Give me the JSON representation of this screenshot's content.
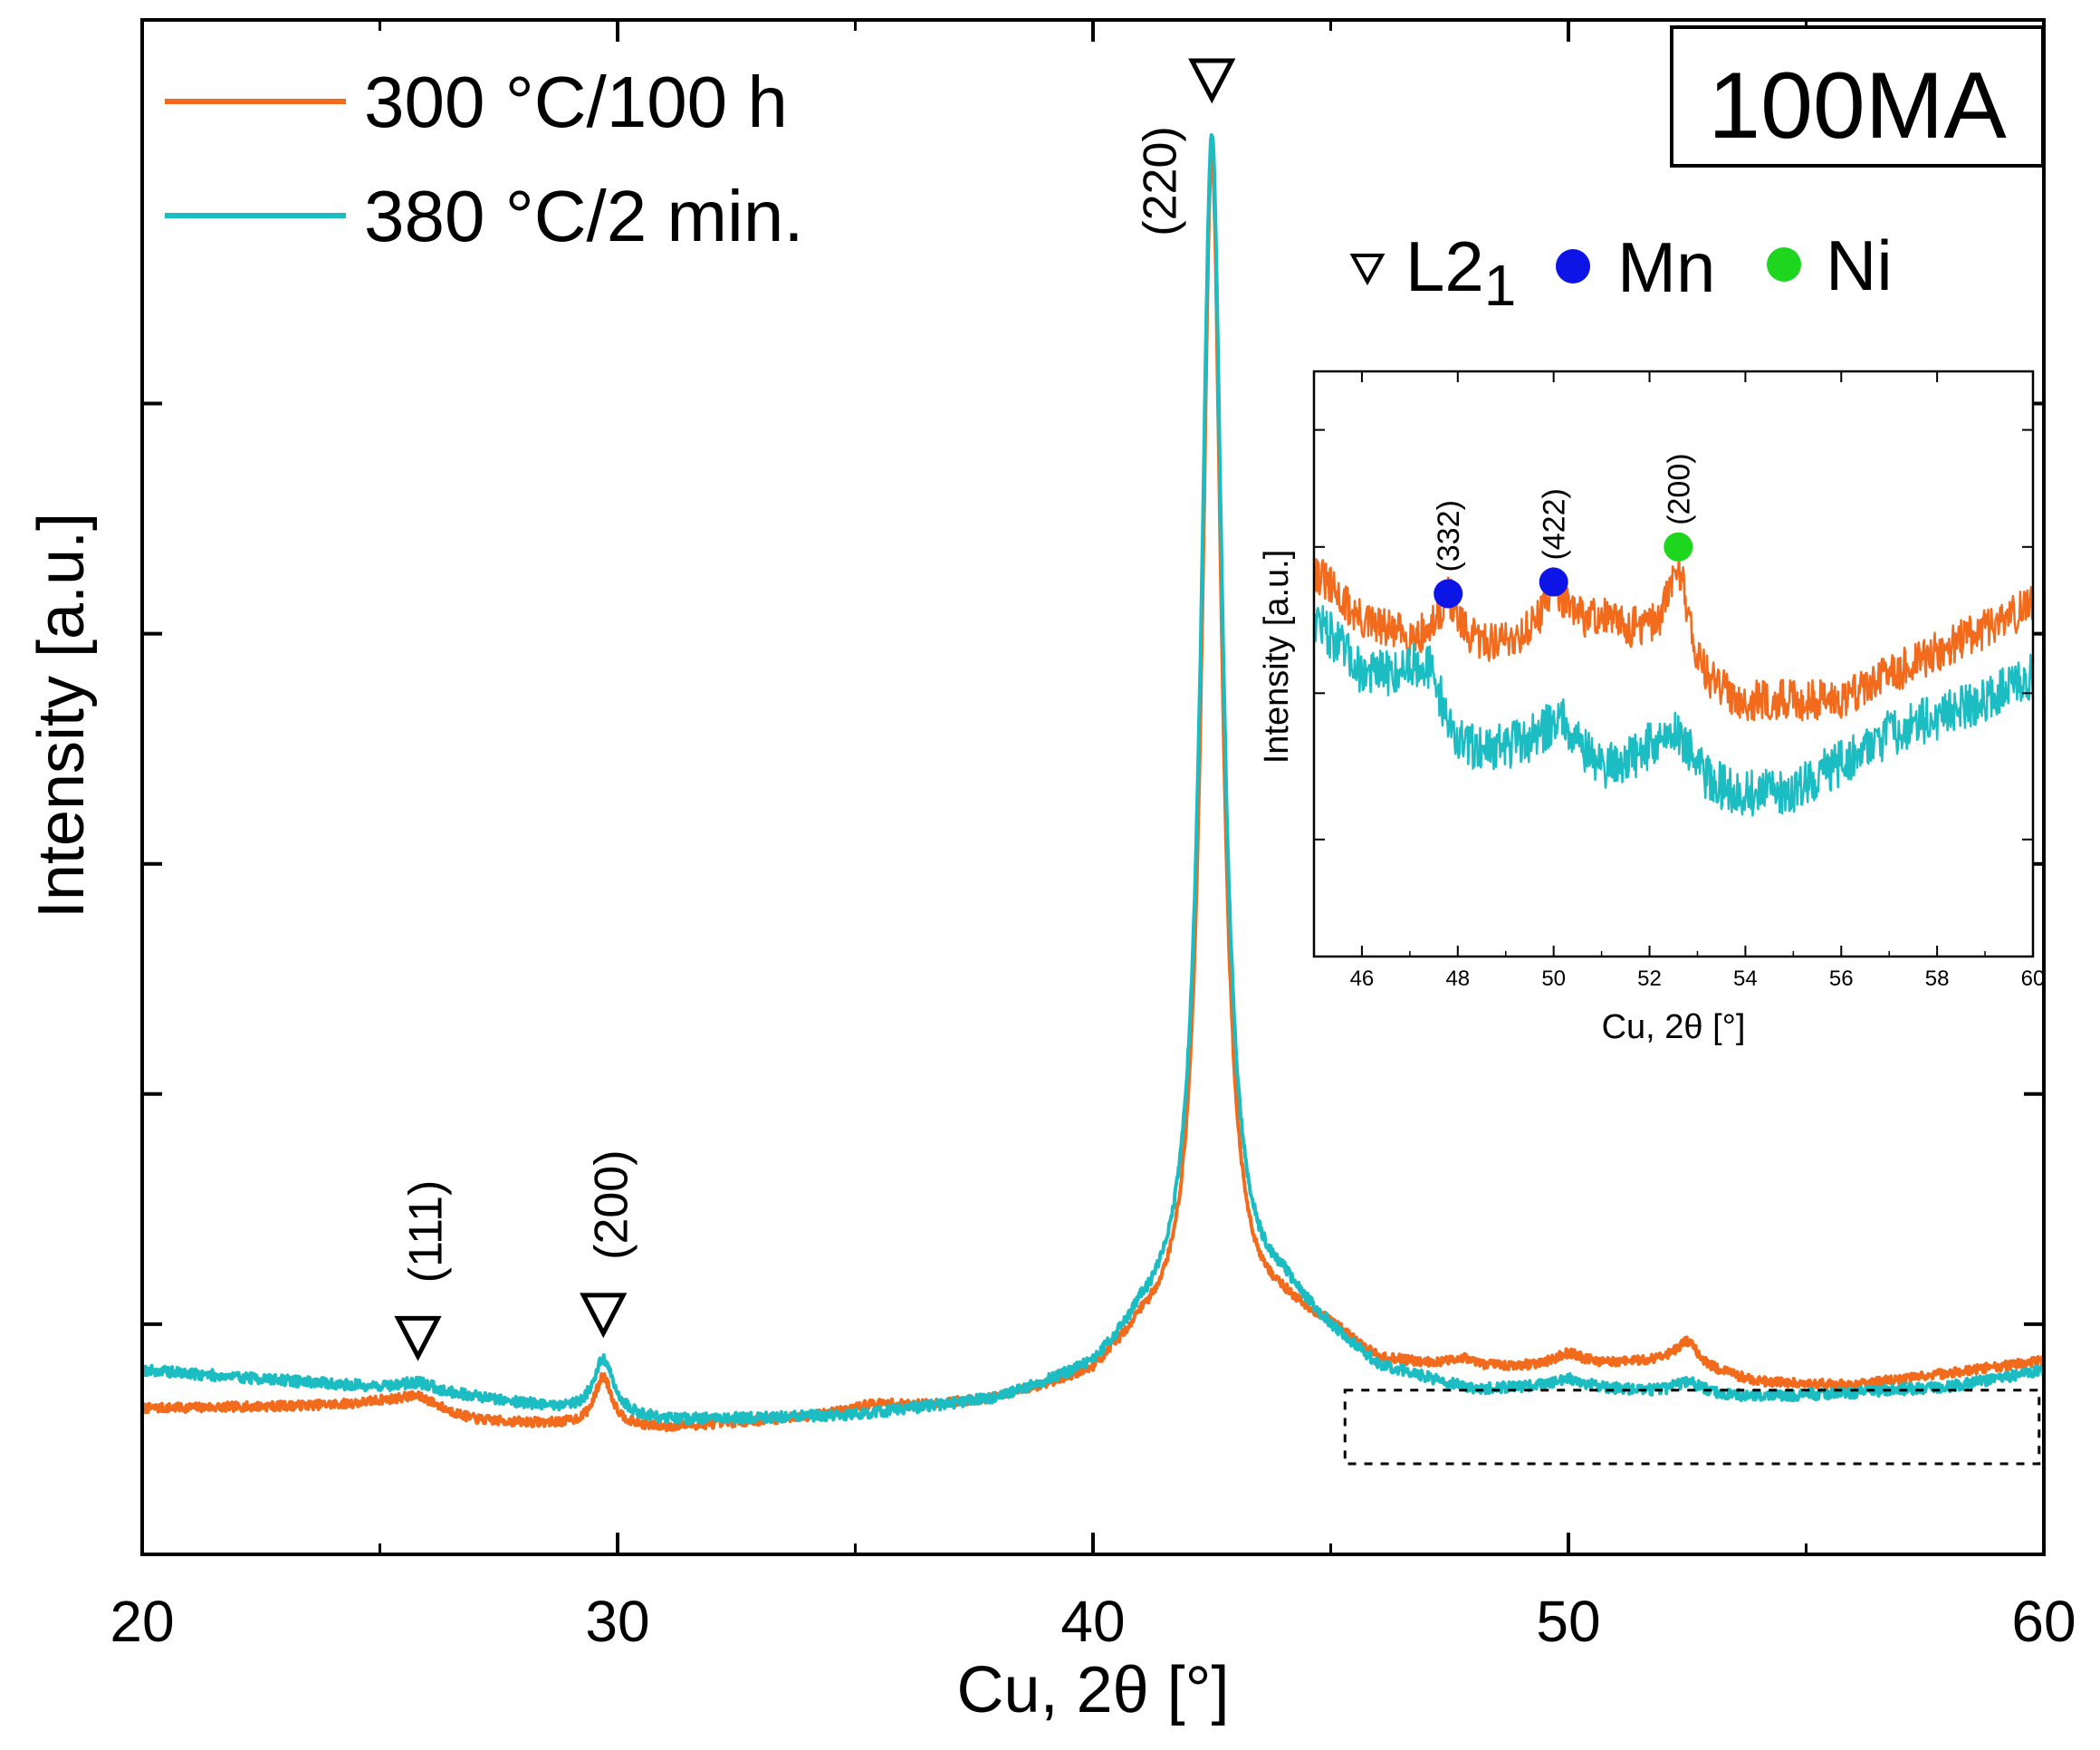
{
  "chart_data": {
    "type": "line",
    "title": "",
    "xlabel": "Cu, 2θ [°]",
    "ylabel": "Intensity [a.u.]",
    "xlim": [
      20,
      60
    ],
    "ylim": [
      0,
      100
    ],
    "xticks": [
      20,
      30,
      40,
      50,
      60
    ],
    "sample_label": "100MA",
    "colors": {
      "orange": "#f26a1b",
      "cyan": "#1cbcc3",
      "mn": "#0c14e6",
      "ni": "#1fd61f"
    },
    "legend": [
      {
        "name": "300 °C/100 h",
        "color": "#f26a1b"
      },
      {
        "name": "380 °C/2 min.",
        "color": "#1cbcc3"
      }
    ],
    "phase_legend": {
      "l21_label": "L2",
      "l21_sub": "1",
      "mn_label": "Mn",
      "ni_label": "Ni"
    },
    "series": [
      {
        "name": "300 °C/100 h",
        "color": "#f26a1b",
        "baseline": [
          [
            20,
            9.5
          ],
          [
            25,
            9.7
          ],
          [
            27,
            8.6
          ],
          [
            29,
            8.4
          ],
          [
            31,
            8.2
          ],
          [
            35,
            9.1
          ],
          [
            38,
            10.0
          ],
          [
            40,
            11.5
          ],
          [
            41,
            14
          ],
          [
            44,
            15.5
          ],
          [
            45,
            14.5
          ],
          [
            46,
            12.5
          ],
          [
            48,
            12.0
          ],
          [
            50,
            12.2
          ],
          [
            52,
            12.5
          ],
          [
            54,
            11.2
          ],
          [
            56,
            11.0
          ],
          [
            58,
            11.8
          ],
          [
            60,
            12.6
          ]
        ],
        "peaks": [
          {
            "center": 25.8,
            "height": 1.0,
            "width": 0.6
          },
          {
            "center": 29.7,
            "height": 3.2,
            "width": 0.22
          },
          {
            "center": 35.4,
            "height": 0.5,
            "width": 0.6
          },
          {
            "center": 42.5,
            "height": 76.5,
            "width": 0.25
          },
          {
            "center": 47.8,
            "height": 0.6,
            "width": 0.3
          },
          {
            "center": 50.0,
            "height": 0.8,
            "width": 0.35
          },
          {
            "center": 52.5,
            "height": 1.6,
            "width": 0.3
          }
        ],
        "noise": 0.3
      },
      {
        "name": "380 °C/2 min.",
        "color": "#1cbcc3",
        "baseline": [
          [
            20,
            12.0
          ],
          [
            23,
            11.3
          ],
          [
            25,
            10.8
          ],
          [
            27,
            10.2
          ],
          [
            29,
            9.4
          ],
          [
            31,
            8.7
          ],
          [
            35,
            9.0
          ],
          [
            38,
            10.0
          ],
          [
            40,
            11.8
          ],
          [
            41,
            14.5
          ],
          [
            44,
            16.5
          ],
          [
            45,
            14.2
          ],
          [
            46,
            12.0
          ],
          [
            48,
            10.6
          ],
          [
            50,
            10.9
          ],
          [
            52,
            10.4
          ],
          [
            54,
            10.2
          ],
          [
            56,
            10.5
          ],
          [
            58,
            10.9
          ],
          [
            60,
            12.0
          ]
        ],
        "peaks": [
          {
            "center": 25.8,
            "height": 0.6,
            "width": 0.5
          },
          {
            "center": 29.7,
            "height": 3.5,
            "width": 0.25
          },
          {
            "center": 42.5,
            "height": 77.2,
            "width": 0.27
          },
          {
            "center": 50.0,
            "height": 0.4,
            "width": 0.4
          },
          {
            "center": 52.5,
            "height": 0.8,
            "width": 0.4
          }
        ],
        "noise": 0.35
      }
    ],
    "annotations": [
      {
        "label": "(111)",
        "x": 25.8,
        "marker": "triangle"
      },
      {
        "label": "(200)",
        "x": 29.7,
        "marker": "triangle"
      },
      {
        "label": "(220)",
        "x": 42.5,
        "marker": "triangle"
      }
    ],
    "inset": {
      "xlabel": "Cu, 2θ [°]",
      "ylabel": "Intensity [a.u.]",
      "xlim": [
        45,
        60
      ],
      "ylim": [
        0,
        100
      ],
      "xticks": [
        46,
        48,
        50,
        52,
        54,
        56,
        58,
        60
      ],
      "source_box": {
        "xlim": [
          45.3,
          59.9
        ],
        "ylim": [
          5.9,
          10.7
        ]
      },
      "series": [
        {
          "name": "300 °C/100 h",
          "color": "#f26a1b",
          "baseline": [
            [
              45,
              66
            ],
            [
              46,
              57
            ],
            [
              47,
              54
            ],
            [
              48,
              52
            ],
            [
              50,
              54
            ],
            [
              51,
              57
            ],
            [
              52,
              53
            ],
            [
              53,
              45
            ],
            [
              54,
              43
            ],
            [
              56,
              44
            ],
            [
              58,
              52
            ],
            [
              59,
              56
            ],
            [
              60,
              60
            ]
          ],
          "peaks": [
            {
              "center": 47.8,
              "height": 9,
              "width": 0.25
            },
            {
              "center": 50.0,
              "height": 9,
              "width": 0.3
            },
            {
              "center": 52.6,
              "height": 18,
              "width": 0.3
            }
          ],
          "noise": 3.5
        },
        {
          "name": "380 °C/2 min.",
          "color": "#1cbcc3",
          "baseline": [
            [
              45,
              58
            ],
            [
              46,
              48
            ],
            [
              47,
              46
            ],
            [
              48,
              34
            ],
            [
              50,
              36
            ],
            [
              51,
              31
            ],
            [
              52,
              33
            ],
            [
              53,
              28
            ],
            [
              54,
              27
            ],
            [
              55,
              28
            ],
            [
              57,
              38
            ],
            [
              59,
              44
            ],
            [
              60,
              48
            ]
          ],
          "peaks": [
            {
              "center": 47.4,
              "height": 8,
              "width": 0.4
            },
            {
              "center": 50.2,
              "height": 5,
              "width": 0.4
            },
            {
              "center": 52.6,
              "height": 8,
              "width": 0.45
            }
          ],
          "noise": 4
        }
      ],
      "annotations": [
        {
          "label": "(332)",
          "x": 47.8,
          "y": 62,
          "marker": "Mn"
        },
        {
          "label": "(422)",
          "x": 50.0,
          "y": 64,
          "marker": "Mn"
        },
        {
          "label": "(200)",
          "x": 52.6,
          "y": 70,
          "marker": "Ni"
        }
      ]
    }
  }
}
